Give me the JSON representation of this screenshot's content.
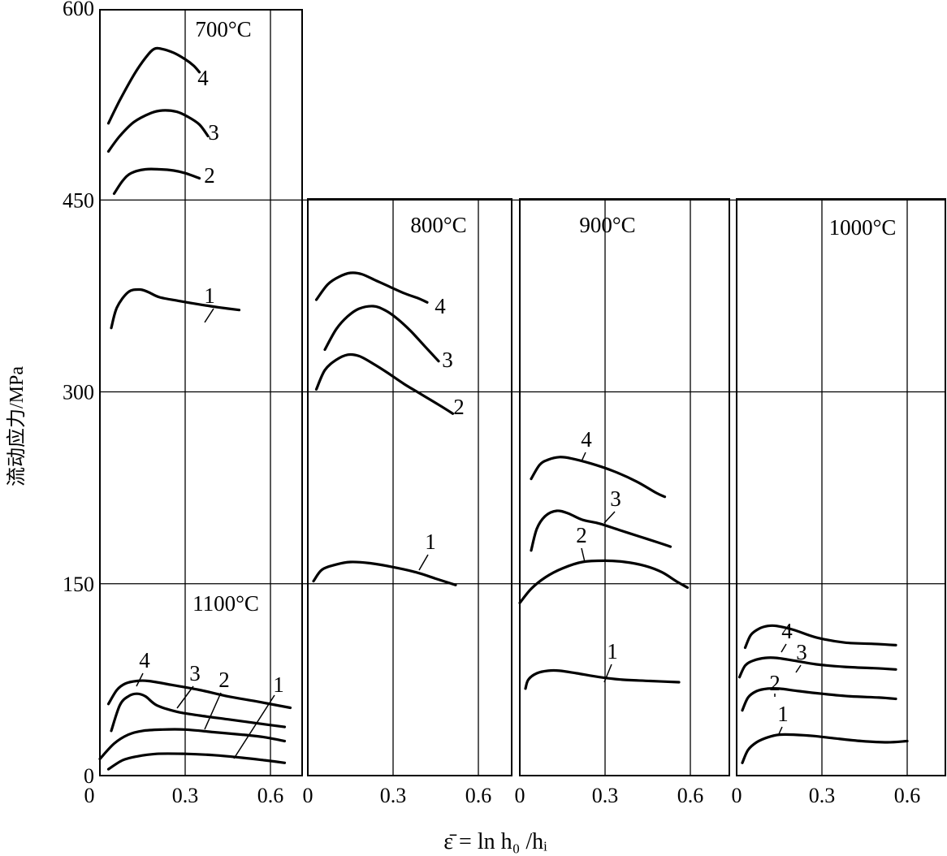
{
  "chart_data": {
    "type": "line",
    "ylabel": "流动应力/MPa",
    "xlabel": "ε̄ = ln h₀ /hᵢ",
    "y_ticks": [
      "0",
      "150",
      "300",
      "450",
      "600"
    ],
    "x_ticks": [
      "0",
      "0.3",
      "0.6"
    ],
    "xlim": [
      0,
      0.7
    ],
    "panels": [
      {
        "id": "p700",
        "title": "700°C",
        "ylim": [
          0,
          600
        ],
        "series": [
          {
            "name": "4",
            "x": [
              0.03,
              0.07,
              0.12,
              0.16,
              0.19,
              0.22,
              0.26,
              0.3,
              0.33,
              0.35
            ],
            "y": [
              510,
              528,
              548,
              561,
              568,
              568,
              565,
              560,
              555,
              550
            ]
          },
          {
            "name": "3",
            "x": [
              0.03,
              0.07,
              0.12,
              0.18,
              0.22,
              0.27,
              0.31,
              0.35,
              0.38
            ],
            "y": [
              488,
              500,
              511,
              518,
              520,
              519,
              515,
              509,
              500
            ]
          },
          {
            "name": "2",
            "x": [
              0.05,
              0.08,
              0.11,
              0.16,
              0.21,
              0.26,
              0.3,
              0.35
            ],
            "y": [
              455,
              465,
              471,
              474,
              474,
              473,
              471,
              467
            ]
          },
          {
            "name": "1",
            "x": [
              0.04,
              0.06,
              0.1,
              0.14,
              0.17,
              0.21,
              0.28,
              0.36,
              0.42,
              0.49
            ],
            "y": [
              350,
              366,
              378,
              380,
              378,
              374,
              371,
              368,
              366,
              364
            ]
          }
        ]
      },
      {
        "id": "p800",
        "title": "800°C",
        "ylim": [
          0,
          450
        ],
        "series": [
          {
            "name": "4",
            "x": [
              0.03,
              0.07,
              0.11,
              0.15,
              0.19,
              0.24,
              0.29,
              0.34,
              0.39,
              0.42
            ],
            "y": [
              372,
              384,
              390,
              393,
              392,
              387,
              382,
              377,
              373,
              370
            ]
          },
          {
            "name": "3",
            "x": [
              0.06,
              0.1,
              0.14,
              0.18,
              0.23,
              0.27,
              0.31,
              0.36,
              0.41,
              0.46
            ],
            "y": [
              333,
              349,
              359,
              365,
              367,
              364,
              358,
              348,
              336,
              324
            ]
          },
          {
            "name": "2",
            "x": [
              0.03,
              0.06,
              0.1,
              0.14,
              0.18,
              0.23,
              0.28,
              0.34,
              0.4,
              0.46,
              0.51
            ],
            "y": [
              302,
              317,
              325,
              329,
              328,
              322,
              315,
              306,
              298,
              290,
              283
            ]
          },
          {
            "name": "1",
            "x": [
              0.02,
              0.05,
              0.1,
              0.15,
              0.22,
              0.3,
              0.38,
              0.45,
              0.52
            ],
            "y": [
              152,
              161,
              165,
              167,
              166,
              163,
              159,
              154,
              149
            ]
          }
        ]
      },
      {
        "id": "p900",
        "title": "900°C",
        "ylim": [
          0,
          450
        ],
        "series": [
          {
            "name": "4",
            "x": [
              0.04,
              0.07,
              0.1,
              0.14,
              0.18,
              0.25,
              0.33,
              0.41,
              0.48,
              0.51
            ],
            "y": [
              232,
              243,
              247,
              249,
              248,
              244,
              238,
              230,
              221,
              218
            ]
          },
          {
            "name": "3",
            "x": [
              0.04,
              0.06,
              0.09,
              0.13,
              0.17,
              0.22,
              0.28,
              0.35,
              0.42,
              0.49,
              0.53
            ],
            "y": [
              176,
              193,
              203,
              207,
              205,
              200,
              197,
              192,
              187,
              182,
              179
            ]
          },
          {
            "name": "2",
            "x": [
              0.0,
              0.04,
              0.09,
              0.15,
              0.22,
              0.3,
              0.37,
              0.44,
              0.5,
              0.55,
              0.59
            ],
            "y": [
              135,
              146,
              155,
              162,
              167,
              168,
              167,
              164,
              159,
              152,
              147
            ]
          },
          {
            "name": "1",
            "x": [
              0.02,
              0.03,
              0.06,
              0.1,
              0.14,
              0.2,
              0.28,
              0.36,
              0.46,
              0.56
            ],
            "y": [
              68,
              75,
              80,
              82,
              82,
              80,
              77,
              75,
              74,
              73
            ]
          }
        ]
      },
      {
        "id": "p1000",
        "title": "1000°C",
        "ylim": [
          0,
          450
        ],
        "series": [
          {
            "name": "4",
            "x": [
              0.03,
              0.05,
              0.08,
              0.11,
              0.14,
              0.2,
              0.28,
              0.38,
              0.48,
              0.56
            ],
            "y": [
              100,
              110,
              115,
              117,
              117,
              114,
              108,
              104,
              103,
              102
            ]
          },
          {
            "name": "3",
            "x": [
              0.01,
              0.03,
              0.06,
              0.1,
              0.14,
              0.2,
              0.28,
              0.38,
              0.48,
              0.56
            ],
            "y": [
              77,
              86,
              90,
              92,
              92,
              90,
              87,
              85,
              84,
              83
            ]
          },
          {
            "name": "2",
            "x": [
              0.02,
              0.04,
              0.07,
              0.11,
              0.15,
              0.22,
              0.3,
              0.4,
              0.5,
              0.56
            ],
            "y": [
              51,
              61,
              66,
              68,
              68,
              66,
              64,
              62,
              61,
              60
            ]
          },
          {
            "name": "1",
            "x": [
              0.02,
              0.04,
              0.07,
              0.11,
              0.15,
              0.2,
              0.27,
              0.35,
              0.44,
              0.53,
              0.6
            ],
            "y": [
              10,
              20,
              26,
              30,
              32,
              32,
              31,
              29,
              27,
              26,
              27
            ]
          }
        ]
      },
      {
        "id": "p1100",
        "title": "1100°C",
        "ylim": [
          0,
          450
        ],
        "series": [
          {
            "name": "4",
            "x": [
              0.03,
              0.06,
              0.09,
              0.13,
              0.17,
              0.25,
              0.35,
              0.45,
              0.55,
              0.67
            ],
            "y": [
              56,
              67,
              72,
              74,
              74,
              71,
              67,
              62,
              58,
              53
            ]
          },
          {
            "name": "3",
            "x": [
              0.04,
              0.07,
              0.1,
              0.13,
              0.16,
              0.2,
              0.27,
              0.35,
              0.45,
              0.55,
              0.65
            ],
            "y": [
              35,
              55,
              62,
              64,
              62,
              55,
              50,
              47,
              44,
              41,
              38
            ]
          },
          {
            "name": "2",
            "x": [
              0.0,
              0.05,
              0.1,
              0.15,
              0.22,
              0.3,
              0.4,
              0.5,
              0.58,
              0.65
            ],
            "y": [
              13,
              25,
              32,
              35,
              36,
              36,
              34,
              32,
              30,
              27
            ]
          },
          {
            "name": "1",
            "x": [
              0.03,
              0.08,
              0.13,
              0.2,
              0.3,
              0.4,
              0.5,
              0.58,
              0.65
            ],
            "y": [
              5,
              12,
              15,
              17,
              17,
              16,
              14,
              12,
              10
            ]
          }
        ]
      }
    ]
  }
}
